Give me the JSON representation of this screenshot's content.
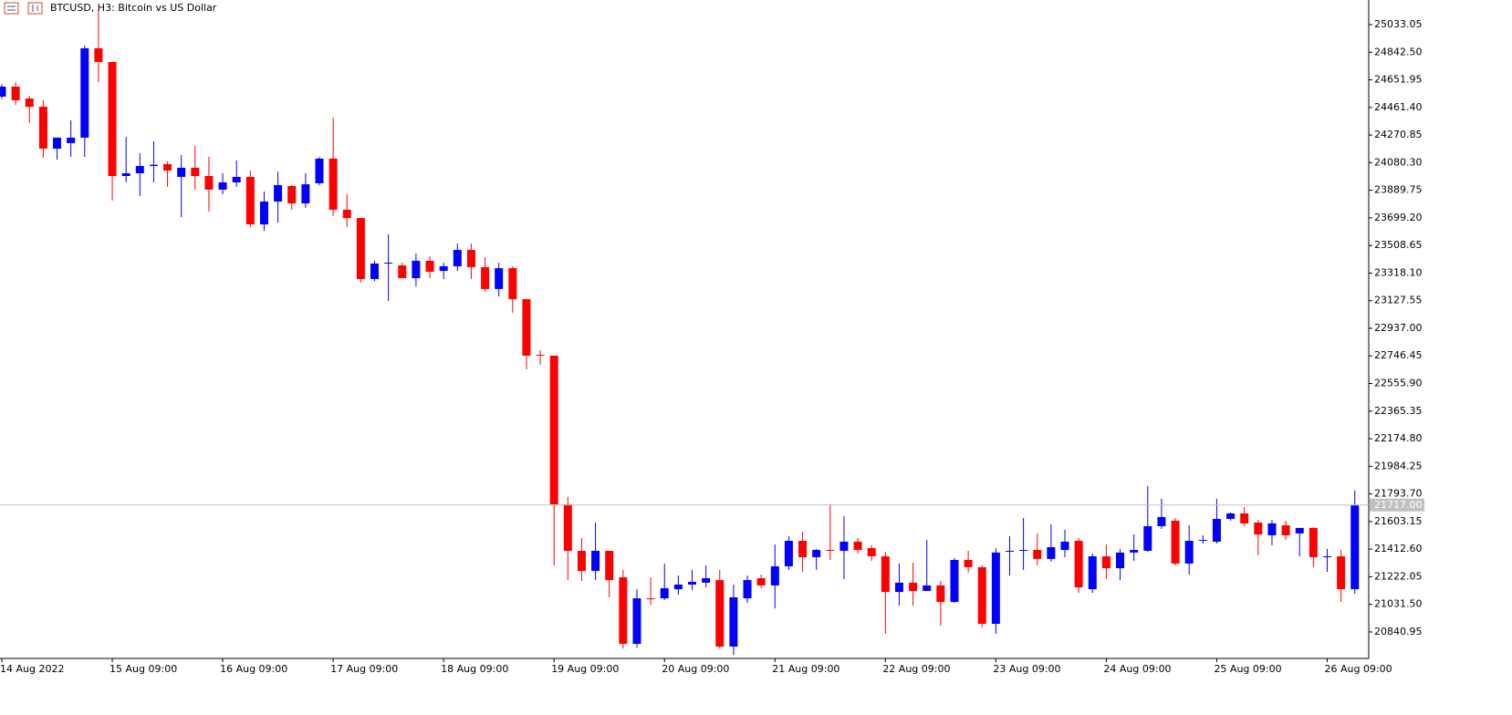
{
  "chart_data": {
    "type": "candlestick",
    "title": "BTCUSD, H3:  Bitcoin vs US Dollar",
    "categories": [
      "14 Aug 2022",
      null,
      null,
      null,
      null,
      null,
      null,
      null,
      "15 Aug 09:00",
      null,
      null,
      null,
      null,
      null,
      null,
      null,
      "16 Aug 09:00",
      null,
      null,
      null,
      null,
      null,
      null,
      null,
      "17 Aug 09:00",
      null,
      null,
      null,
      null,
      null,
      null,
      null,
      "18 Aug 09:00",
      null,
      null,
      null,
      null,
      null,
      null,
      null,
      "19 Aug 09:00",
      null,
      null,
      null,
      null,
      null,
      null,
      null,
      "20 Aug 09:00",
      null,
      null,
      null,
      null,
      null,
      null,
      null,
      "21 Aug 09:00",
      null,
      null,
      null,
      null,
      null,
      null,
      null,
      "22 Aug 09:00",
      null,
      null,
      null,
      null,
      null,
      null,
      null,
      "23 Aug 09:00",
      null,
      null,
      null,
      null,
      null,
      null,
      null,
      "24 Aug 09:00",
      null,
      null,
      null,
      null,
      null,
      null,
      null,
      "25 Aug 09:00",
      null,
      null,
      null,
      null,
      null,
      null,
      null,
      "26 Aug 09:00",
      null,
      null
    ],
    "open": [
      24536,
      24605,
      24523,
      24466,
      24177,
      24215,
      24253,
      24870,
      24775,
      23988,
      24007,
      24057,
      24070,
      23982,
      24045,
      23988,
      23894,
      23944,
      23982,
      23654,
      23812,
      23919,
      23799,
      23938,
      24108,
      23755,
      23698,
      23277,
      23384,
      23371,
      23283,
      23403,
      23333,
      23365,
      23478,
      23359,
      23208,
      23352,
      23138,
      22754,
      22748,
      21722,
      21401,
      21262,
      21401,
      21218,
      20759,
      21073,
      21073,
      21136,
      21168,
      21181,
      21199,
      20740,
      21073,
      21212,
      21162,
      21294,
      21470,
      21357,
      21407,
      21401,
      21464,
      21420,
      21363,
      21117,
      21181,
      21124,
      21162,
      21048,
      21338,
      21288,
      20897,
      21395,
      21401,
      21407,
      21345,
      21407,
      21470,
      21136,
      21363,
      21281,
      21389,
      21401,
      21571,
      21609,
      21313,
      21470,
      21464,
      21621,
      21659,
      21596,
      21508,
      21577,
      21521,
      21559,
      21357,
      21363,
      21136
    ],
    "high": [
      24620,
      24636,
      24542,
      24511,
      24253,
      24372,
      24888,
      25140,
      24775,
      24259,
      24145,
      24227,
      24089,
      24133,
      24196,
      24120,
      24007,
      24095,
      24026,
      23881,
      24019,
      23925,
      24007,
      24120,
      24391,
      23862,
      23698,
      23403,
      23585,
      23390,
      23453,
      23434,
      23390,
      23522,
      23522,
      23428,
      23390,
      23365,
      23138,
      22786,
      22748,
      21773,
      21489,
      21596,
      21401,
      21269,
      21136,
      21218,
      21313,
      21231,
      21269,
      21300,
      21269,
      21168,
      21231,
      21237,
      21445,
      21502,
      21533,
      21414,
      21722,
      21640,
      21489,
      21439,
      21395,
      21313,
      21319,
      21476,
      21193,
      21351,
      21401,
      21300,
      21420,
      21502,
      21628,
      21521,
      21584,
      21546,
      21489,
      21382,
      21445,
      21414,
      21514,
      21848,
      21760,
      21628,
      21577,
      21508,
      21760,
      21665,
      21703,
      21615,
      21615,
      21609,
      21552,
      21565,
      21414,
      21407,
      21817
    ],
    "low": [
      24520,
      24479,
      24353,
      24114,
      24101,
      24120,
      24120,
      24636,
      23818,
      23944,
      23850,
      23944,
      23913,
      23705,
      23894,
      23742,
      23862,
      23913,
      23635,
      23610,
      23667,
      23755,
      23768,
      23925,
      23711,
      23635,
      23252,
      23264,
      23126,
      23283,
      23226,
      23283,
      23277,
      23333,
      23277,
      23189,
      23157,
      23044,
      22654,
      22685,
      21300,
      21199,
      21193,
      21199,
      21080,
      20727,
      20733,
      21029,
      21061,
      21098,
      21130,
      21149,
      20727,
      20683,
      21042,
      21143,
      21004,
      21269,
      21256,
      21269,
      21338,
      21206,
      21382,
      21332,
      20828,
      21023,
      21023,
      21124,
      20884,
      21042,
      21250,
      20872,
      20828,
      21231,
      21269,
      21300,
      21326,
      21357,
      21111,
      21111,
      21206,
      21199,
      21332,
      21395,
      21552,
      21300,
      21237,
      21451,
      21451,
      21609,
      21571,
      21370,
      21439,
      21476,
      21363,
      21288,
      21256,
      21048,
      21105
    ],
    "close": [
      24605,
      24511,
      24466,
      24177,
      24253,
      24253,
      24870,
      24775,
      23988,
      24007,
      24057,
      24066,
      24026,
      24045,
      23988,
      23894,
      23944,
      23982,
      23654,
      23812,
      23925,
      23799,
      23931,
      24108,
      23755,
      23698,
      23277,
      23384,
      23390,
      23283,
      23403,
      23327,
      23365,
      23478,
      23359,
      23208,
      23352,
      23138,
      22748,
      22748,
      21722,
      21401,
      21262,
      21401,
      21199,
      20759,
      21073,
      21067,
      21143,
      21168,
      21187,
      21212,
      20740,
      21080,
      21199,
      21162,
      21294,
      21470,
      21357,
      21407,
      21401,
      21464,
      21407,
      21363,
      21117,
      21181,
      21124,
      21162,
      21048,
      21338,
      21288,
      20897,
      21389,
      21401,
      21407,
      21345,
      21426,
      21464,
      21149,
      21363,
      21281,
      21389,
      21407,
      21571,
      21634,
      21313,
      21470,
      21476,
      21621,
      21659,
      21590,
      21514,
      21590,
      21508,
      21559,
      21357,
      21363,
      21136,
      21717
    ],
    "up_color": "#0000ff",
    "down_color": "#ff0000",
    "price_line": {
      "value": 21717,
      "label": "21717.00"
    },
    "ylim": [
      20658,
      25203
    ],
    "yticks": [
      {
        "value": 25033.05,
        "label": "25033.05"
      },
      {
        "value": 24842.5,
        "label": "24842.50"
      },
      {
        "value": 24651.95,
        "label": "24651.95"
      },
      {
        "value": 24461.4,
        "label": "24461.40"
      },
      {
        "value": 24270.85,
        "label": "24270.85"
      },
      {
        "value": 24080.3,
        "label": "24080.30"
      },
      {
        "value": 23889.75,
        "label": "23889.75"
      },
      {
        "value": 23699.2,
        "label": "23699.20"
      },
      {
        "value": 23508.65,
        "label": "23508.65"
      },
      {
        "value": 23318.1,
        "label": "23318.10"
      },
      {
        "value": 23127.55,
        "label": "23127.55"
      },
      {
        "value": 22937,
        "label": "22937.00"
      },
      {
        "value": 22746.45,
        "label": "22746.45"
      },
      {
        "value": 22555.9,
        "label": "22555.90"
      },
      {
        "value": 22365.35,
        "label": "22365.35"
      },
      {
        "value": 22174.8,
        "label": "22174.80"
      },
      {
        "value": 21984.25,
        "label": "21984.25"
      },
      {
        "value": 21793.7,
        "label": "21793.70"
      },
      {
        "value": 21603.15,
        "label": "21603.15"
      },
      {
        "value": 21412.6,
        "label": "21412.60"
      },
      {
        "value": 21222.05,
        "label": "21222.05"
      },
      {
        "value": 21031.5,
        "label": "21031.50"
      },
      {
        "value": 20840.95,
        "label": "20840.95"
      }
    ],
    "grid": false
  }
}
